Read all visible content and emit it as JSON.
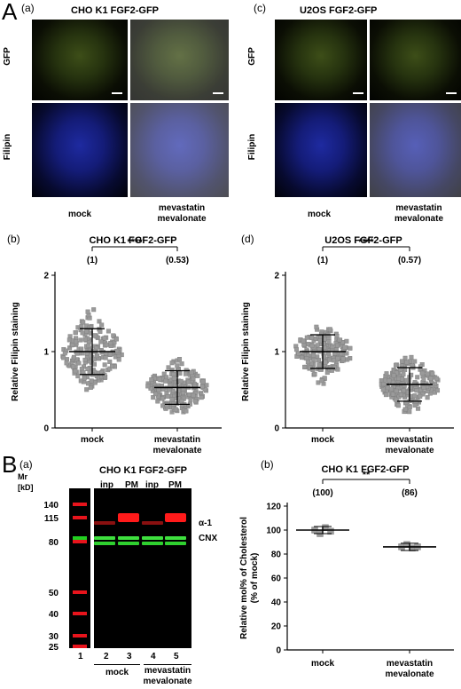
{
  "figure": {
    "panel_A": "A",
    "panel_B": "B",
    "a_label": "(a)",
    "b_label": "(b)",
    "c_label": "(c)",
    "d_label": "(d)",
    "Ba_label": "(a)",
    "Bb_label": "(b)"
  },
  "micro_a": {
    "title": "CHO K1 FGF2-GFP",
    "row_gfp": "GFP",
    "row_filipin": "Filipin",
    "col_mock": "mock",
    "col_treat_1": "mevastatin",
    "col_treat_2": "mevalonate"
  },
  "micro_c": {
    "title": "U2OS FGF2-GFP",
    "row_gfp": "GFP",
    "row_filipin": "Filipin",
    "col_mock": "mock",
    "col_treat_1": "mevastatin",
    "col_treat_2": "mevalonate"
  },
  "blot": {
    "title": "CHO K1 FGF2-GFP",
    "mr_label": "Mr",
    "kd_label": "[kD]",
    "markers": [
      "140",
      "115",
      "80",
      "50",
      "40",
      "30",
      "25"
    ],
    "lane_inp_1": "inp",
    "lane_pm_1": "PM",
    "lane_inp_2": "inp",
    "lane_pm_2": "PM",
    "band_alpha": "α-1",
    "band_cnx": "CNX",
    "lane_numbers": [
      "1",
      "2",
      "3",
      "4",
      "5"
    ],
    "group_mock": "mock",
    "group_treat_1": "mevastatin",
    "group_treat_2": "mevalonate"
  },
  "chart_data": [
    {
      "type": "scatter",
      "panel": "(b)",
      "title": "CHO K1 FGF2-GFP",
      "ylabel": "Relative Filipin staining",
      "ylim": [
        0,
        2
      ],
      "yticks": [
        "0",
        "1",
        "2"
      ],
      "categories": [
        "mock",
        "mevastatin mevalonate"
      ],
      "mean": [
        1.0,
        0.53
      ],
      "sd": [
        0.3,
        0.22
      ],
      "point_count": [
        190,
        200
      ],
      "range": [
        [
          0.4,
          1.6
        ],
        [
          0.2,
          1.35
        ]
      ],
      "annotations": [
        "(1)",
        "(0.53)"
      ],
      "significance": "****"
    },
    {
      "type": "scatter",
      "panel": "(d)",
      "title": "U2OS FGF2-GFP",
      "ylabel": "Relative Filipin staining",
      "ylim": [
        0,
        2
      ],
      "yticks": [
        "0",
        "1",
        "2"
      ],
      "categories": [
        "mock",
        "mevastatin mevalonate"
      ],
      "mean": [
        1.0,
        0.57
      ],
      "sd": [
        0.22,
        0.22
      ],
      "point_count": [
        180,
        210
      ],
      "range": [
        [
          0.35,
          1.5
        ],
        [
          0.2,
          1.25
        ]
      ],
      "annotations": [
        "(1)",
        "(0.57)"
      ],
      "significance": "****"
    },
    {
      "type": "scatter",
      "panel": "(b)",
      "title": "CHO K1 FGF2-GFP",
      "ylabel": "Relative mol% of Cholesterol (% of mock)",
      "ylim": [
        0,
        120
      ],
      "yticks": [
        "0",
        "20",
        "40",
        "60",
        "80",
        "100",
        "120"
      ],
      "categories": [
        "mock",
        "mevastatin mevalonate"
      ],
      "points": [
        [
          100,
          97,
          102,
          99
        ],
        [
          86,
          88,
          85,
          86
        ]
      ],
      "mean": [
        100,
        86
      ],
      "annotations": [
        "(100)",
        "(86)"
      ],
      "significance": "**"
    }
  ]
}
